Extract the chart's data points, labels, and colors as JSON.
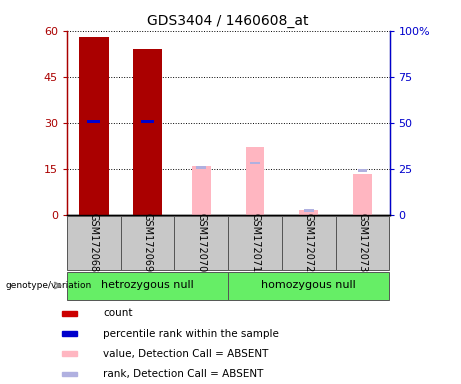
{
  "title": "GDS3404 / 1460608_at",
  "samples": [
    "GSM172068",
    "GSM172069",
    "GSM172070",
    "GSM172071",
    "GSM172072",
    "GSM172073"
  ],
  "group1_name": "hetrozygous null",
  "group2_name": "homozygous null",
  "group_color": "#66ee66",
  "count_values": [
    58,
    54,
    0,
    0,
    0,
    0
  ],
  "percentile_rank": [
    30.5,
    30.5,
    0,
    0,
    0,
    0
  ],
  "absent_value": [
    0,
    0,
    16,
    22,
    1.5,
    13.5
  ],
  "absent_rank": [
    0,
    0,
    15.5,
    17,
    1.5,
    14.5
  ],
  "left_ylim": [
    0,
    60
  ],
  "right_ylim": [
    0,
    100
  ],
  "left_yticks": [
    0,
    15,
    30,
    45,
    60
  ],
  "right_yticks": [
    0,
    25,
    50,
    75,
    100
  ],
  "left_yticklabels": [
    "0",
    "15",
    "30",
    "45",
    "60"
  ],
  "right_yticklabels": [
    "0",
    "25",
    "50",
    "75",
    "100%"
  ],
  "count_color": "#aa0000",
  "percentile_color": "#0000cc",
  "absent_value_color": "#ffb6c1",
  "absent_rank_color": "#b0b0e0",
  "sample_bg_color": "#c8c8c8",
  "legend_items": [
    {
      "label": "count",
      "color": "#cc0000"
    },
    {
      "label": "percentile rank within the sample",
      "color": "#0000cc"
    },
    {
      "label": "value, Detection Call = ABSENT",
      "color": "#ffb6c1"
    },
    {
      "label": "rank, Detection Call = ABSENT",
      "color": "#b0b0e0"
    }
  ],
  "genotype_label": "genotype/variation"
}
